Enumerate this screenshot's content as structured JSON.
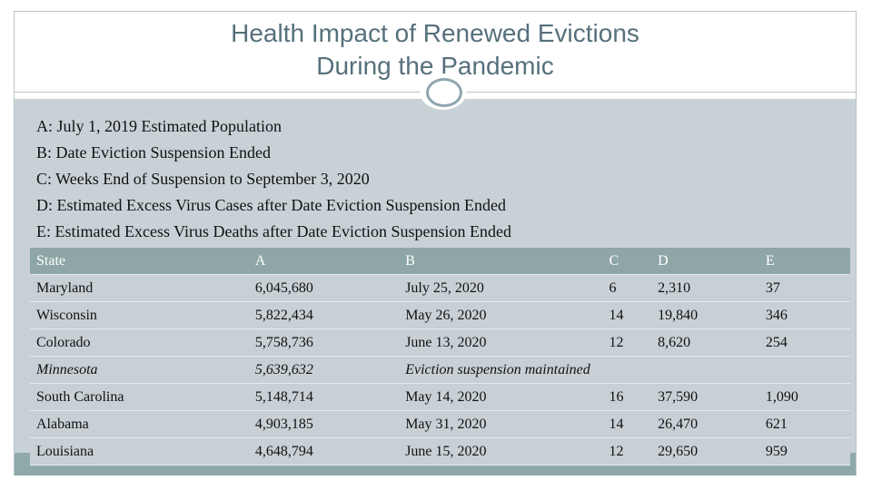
{
  "header": {
    "title": [
      "Health Impact of Renewed Evictions",
      "During the Pandemic"
    ]
  },
  "legend": [
    "A: July 1, 2019 Estimated Population",
    "B: Date Eviction Suspension Ended",
    "C: Weeks End of Suspension to September 3, 2020",
    "D: Estimated Excess Virus Cases after Date Eviction Suspension Ended",
    "E: Estimated Excess Virus Deaths after Date Eviction Suspension Ended"
  ],
  "table": {
    "columns": [
      "State",
      "A",
      "B",
      "C",
      "D",
      "E"
    ],
    "rows": [
      [
        "Maryland",
        "6,045,680",
        "July 25, 2020",
        "6",
        "2,310",
        "37"
      ],
      [
        "Wisconsin",
        "5,822,434",
        "May 26, 2020",
        "14",
        "19,840",
        "346"
      ],
      [
        "Colorado",
        "5,758,736",
        "June 13, 2020",
        "12",
        "8,620",
        "254"
      ],
      [
        "Minnesota",
        "5,639,632",
        "Eviction suspension maintained"
      ],
      [
        "South Carolina",
        "5,148,714",
        "May 14, 2020",
        "16",
        "37,590",
        "1,090"
      ],
      [
        "Alabama",
        "4,903,185",
        "May 31, 2020",
        "14",
        "26,470",
        "621"
      ],
      [
        "Louisiana",
        "4,648,794",
        "June 15, 2020",
        "12",
        "29,650",
        "959"
      ]
    ]
  }
}
